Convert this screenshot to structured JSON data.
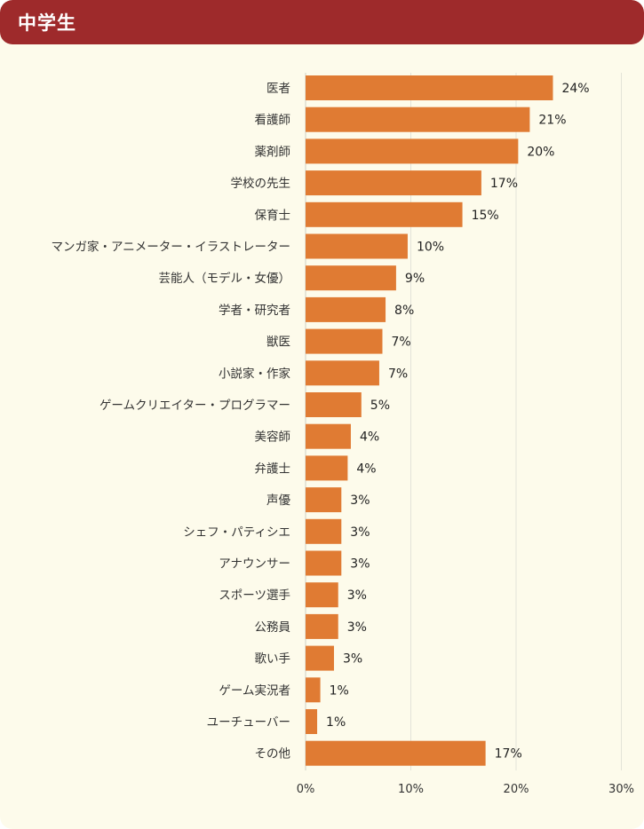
{
  "header": {
    "title": "中学生"
  },
  "colors": {
    "header_bg": "#9e2a2b",
    "panel_bg": "#fdfbeb",
    "bar": "#e07b33",
    "grid": "#e3e3d8"
  },
  "chart_data": {
    "type": "bar",
    "orientation": "horizontal",
    "categories": [
      "医者",
      "看護師",
      "薬剤師",
      "学校の先生",
      "保育士",
      "マンガ家・アニメーター・イラストレーター",
      "芸能人（モデル・女優）",
      "学者・研究者",
      "獣医",
      "小説家・作家",
      "ゲームクリエイター・プログラマー",
      "美容師",
      "弁護士",
      "声優",
      "シェフ・パティシエ",
      "アナウンサー",
      "スポーツ選手",
      "公務員",
      "歌い手",
      "ゲーム実況者",
      "ユーチューバー",
      "その他"
    ],
    "values": [
      23.5,
      21.3,
      20.2,
      16.7,
      14.9,
      9.7,
      8.6,
      7.6,
      7.3,
      7.0,
      5.3,
      4.3,
      4.0,
      3.4,
      3.4,
      3.4,
      3.1,
      3.1,
      2.7,
      1.4,
      1.1,
      17.1
    ],
    "value_labels": [
      "24%",
      "21%",
      "20%",
      "17%",
      "15%",
      "10%",
      "9%",
      "8%",
      "7%",
      "7%",
      "5%",
      "4%",
      "4%",
      "3%",
      "3%",
      "3%",
      "3%",
      "3%",
      "3%",
      "1%",
      "1%",
      "17%"
    ],
    "xlim": [
      0,
      30
    ],
    "xticks": [
      "0%",
      "10%",
      "20%",
      "30%"
    ],
    "grid": true
  }
}
